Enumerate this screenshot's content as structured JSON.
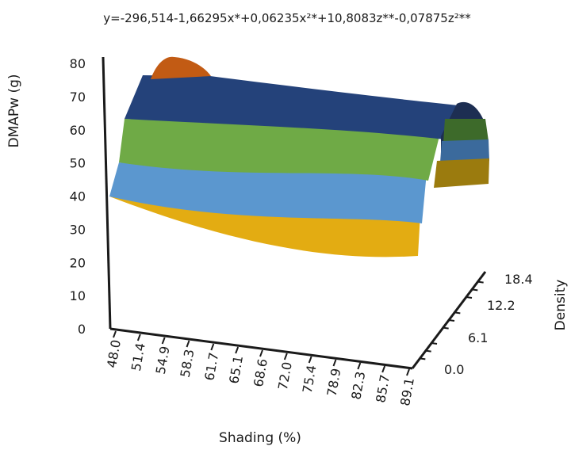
{
  "chart_data": {
    "type": "surface-3d",
    "title": "y=-296,514-1,66295x*+0,06235x²*+10,8083z**-0,07875z²**",
    "equation": {
      "intercept": -296.514,
      "x": -1.66295,
      "x2": 0.06235,
      "z": 10.8083,
      "z2": -0.07875
    },
    "ylabel": "DMAPw (g)",
    "xlabel": "Shading (%)",
    "zlabel": "Density",
    "ylim": [
      0,
      80
    ],
    "y_ticks": [
      "0",
      "10",
      "20",
      "30",
      "40",
      "50",
      "60",
      "70",
      "80"
    ],
    "x_ticks": [
      "48.0",
      "51.4",
      "54.9",
      "58.3",
      "61.7",
      "65.1",
      "68.6",
      "72.0",
      "75.4",
      "78.9",
      "82.3",
      "85.7",
      "89.1"
    ],
    "z_ticks": [
      "0.0",
      "6.1",
      "12.2",
      "18.4"
    ],
    "color_bands": [
      {
        "range": [
          30,
          40
        ],
        "color": "#e3ac12"
      },
      {
        "range": [
          40,
          50
        ],
        "color": "#5b97cf"
      },
      {
        "range": [
          50,
          60
        ],
        "color": "#6faa46"
      },
      {
        "range": [
          60,
          70
        ],
        "color": "#24427a"
      },
      {
        "range": [
          70,
          80
        ],
        "color": "#c25b14"
      }
    ],
    "legend": "none",
    "grid": false
  }
}
